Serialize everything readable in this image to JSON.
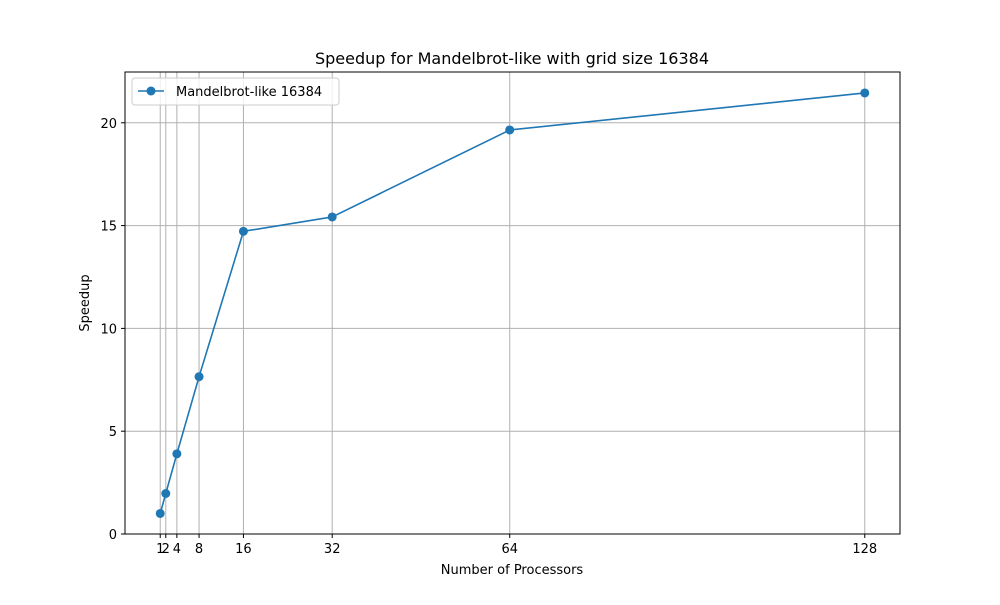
{
  "chart_data": {
    "type": "line",
    "title": "Speedup for Mandelbrot-like with grid size 16384",
    "xlabel": "Number of Processors",
    "ylabel": "Speedup",
    "x": [
      1,
      2,
      4,
      8,
      16,
      32,
      64,
      128
    ],
    "series": [
      {
        "name": "Mandelbrot-like 16384",
        "values": [
          1.0,
          1.97,
          3.9,
          7.65,
          14.72,
          15.42,
          19.65,
          21.45
        ],
        "color": "#1f77b4",
        "marker": "circle"
      }
    ],
    "xticks": [
      1,
      2,
      4,
      8,
      16,
      32,
      64,
      128
    ],
    "xtick_labels": [
      "1",
      "2",
      "4",
      "8",
      "16",
      "32",
      "64",
      "128"
    ],
    "yticks": [
      0,
      5,
      10,
      15,
      20
    ],
    "ytick_labels": [
      "0",
      "5",
      "10",
      "15",
      "20"
    ],
    "xlim": [
      -5.35,
      134.35
    ],
    "ylim": [
      0,
      22.47
    ],
    "grid": true,
    "legend_position": "upper-left",
    "colors": {
      "grid": "#b0b0b0",
      "axes": "#000000",
      "background": "#ffffff"
    }
  }
}
